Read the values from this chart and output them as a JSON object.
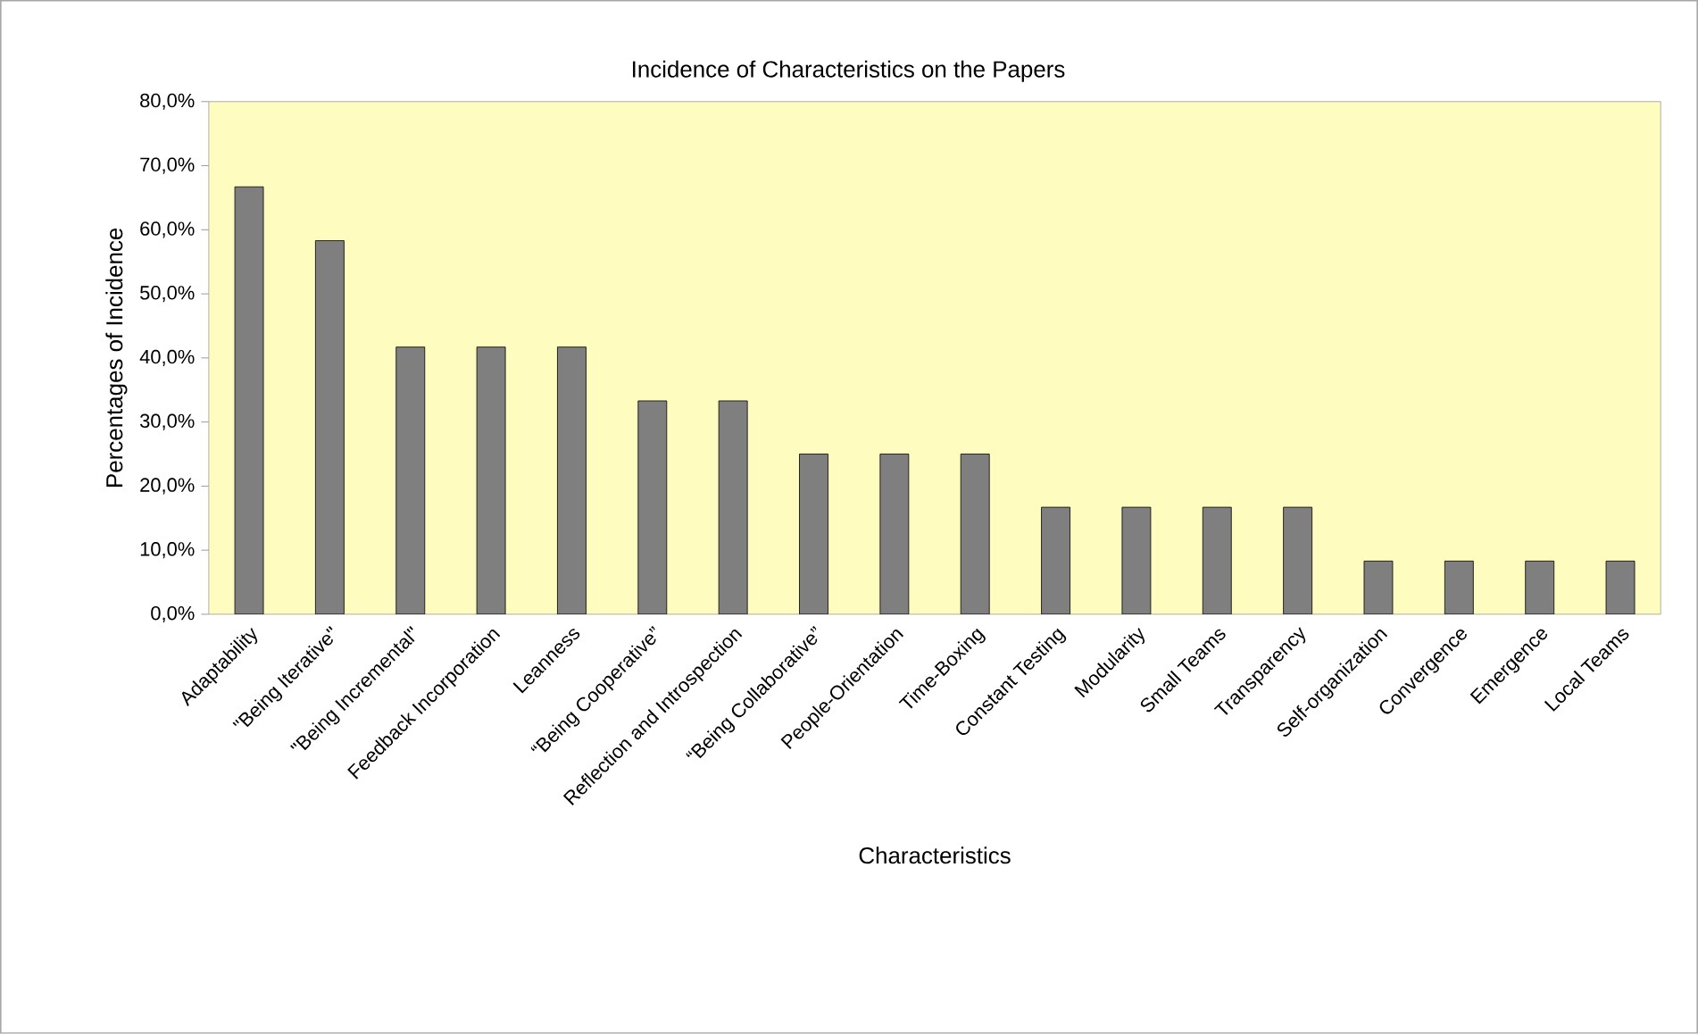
{
  "chart_data": {
    "type": "bar",
    "title": "Incidence of Characteristics on the Papers",
    "xlabel": "Characteristics",
    "ylabel": "Percentages of Incidence",
    "categories": [
      "Adaptability",
      "\"Being Iterative\"",
      "\"Being Incremental\"",
      "Feedback Incorporation",
      "Leanness",
      "“Being Cooperative”",
      "Reflection and Introspection",
      "“Being Collaborative”",
      "People-Orientation",
      "Time-Boxing",
      "Constant Testing",
      "Modularity",
      "Small Teams",
      "Transparency",
      "Self-organization",
      "Convergence",
      "Emergence",
      "Local Teams"
    ],
    "values": [
      66.7,
      58.3,
      41.7,
      41.7,
      41.7,
      33.3,
      33.3,
      25.0,
      25.0,
      25.0,
      16.7,
      16.7,
      16.7,
      16.7,
      8.3,
      8.3,
      8.3,
      8.3
    ],
    "color": "#7f7f7f",
    "ylim": [
      0,
      80
    ],
    "yticks": [
      {
        "value": 0,
        "label": "0,0%"
      },
      {
        "value": 10,
        "label": "10,0%"
      },
      {
        "value": 20,
        "label": "20,0%"
      },
      {
        "value": 30,
        "label": "30,0%"
      },
      {
        "value": 40,
        "label": "40,0%"
      },
      {
        "value": 50,
        "label": "50,0%"
      },
      {
        "value": 60,
        "label": "60,0%"
      },
      {
        "value": 70,
        "label": "70,0%"
      },
      {
        "value": 80,
        "label": "80,0%"
      }
    ],
    "grid": false
  }
}
